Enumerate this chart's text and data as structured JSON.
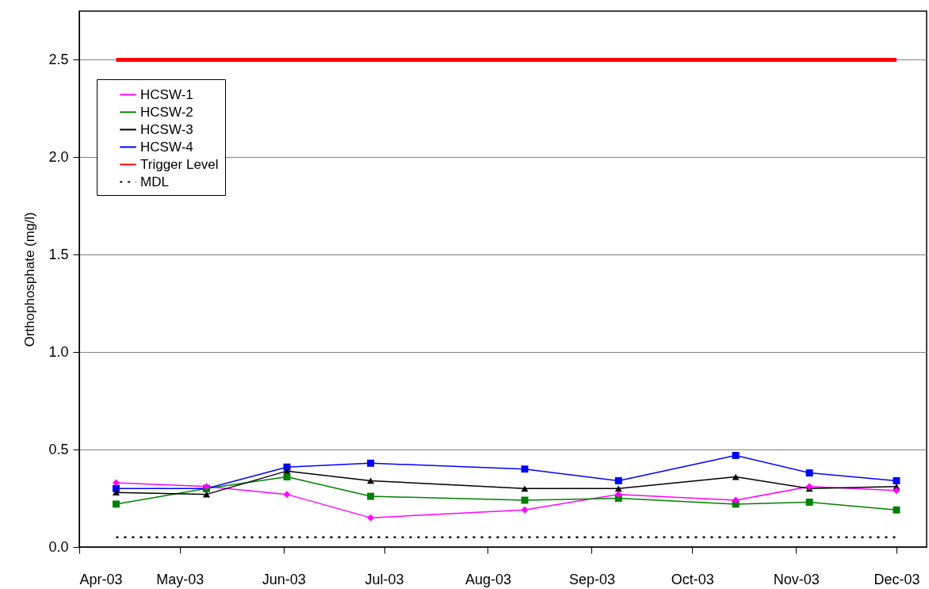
{
  "chart_data": {
    "type": "line",
    "ylabel": "Orthophosphate (mg/l)",
    "x": [
      "2003-04-12",
      "2003-05-09",
      "2003-06-02",
      "2003-06-27",
      "2003-08-12",
      "2003-09-09",
      "2003-10-14",
      "2003-11-05",
      "2003-12-01"
    ],
    "xlim": [
      "2003-04-01",
      "2003-12-10"
    ],
    "xticks": [
      {
        "value": "2003-04-01",
        "label": "Apr-03"
      },
      {
        "value": "2003-05-01",
        "label": "May-03"
      },
      {
        "value": "2003-06-01",
        "label": "Jun-03"
      },
      {
        "value": "2003-07-01",
        "label": "Jul-03"
      },
      {
        "value": "2003-08-01",
        "label": "Aug-03"
      },
      {
        "value": "2003-09-01",
        "label": "Sep-03"
      },
      {
        "value": "2003-10-01",
        "label": "Oct-03"
      },
      {
        "value": "2003-11-01",
        "label": "Nov-03"
      },
      {
        "value": "2003-12-01",
        "label": "Dec-03"
      }
    ],
    "ylim": [
      0,
      2.75
    ],
    "yticks": [
      {
        "value": 0,
        "label": "0.0"
      },
      {
        "value": 0.5,
        "label": "0.5"
      },
      {
        "value": 1,
        "label": "1.0"
      },
      {
        "value": 1.5,
        "label": "1.5"
      },
      {
        "value": 2,
        "label": "2.0"
      },
      {
        "value": 2.5,
        "label": "2.5"
      }
    ],
    "grid": "y",
    "legend": "top left",
    "series": [
      {
        "name": "HCSW-1",
        "color": "#ff00ff",
        "marker": "diamond",
        "line_style": "solid",
        "values": [
          0.33,
          0.31,
          0.27,
          0.15,
          0.19,
          0.27,
          0.24,
          0.31,
          0.29
        ]
      },
      {
        "name": "HCSW-2",
        "color": "#008000",
        "marker": "square",
        "line_style": "solid",
        "values": [
          0.22,
          0.3,
          0.36,
          0.26,
          0.24,
          0.25,
          0.22,
          0.23,
          0.19
        ]
      },
      {
        "name": "HCSW-3",
        "color": "#000000",
        "marker": "triangle",
        "line_style": "solid",
        "values": [
          0.28,
          0.27,
          0.39,
          0.34,
          0.3,
          0.3,
          0.36,
          0.3,
          0.31
        ]
      },
      {
        "name": "HCSW-4",
        "color": "#0000ff",
        "marker": "square",
        "line_style": "solid",
        "values": [
          0.3,
          0.3,
          0.41,
          0.43,
          0.4,
          0.34,
          0.47,
          0.38,
          0.34
        ]
      },
      {
        "name": "Trigger Level",
        "color": "#ff0000",
        "marker": "none",
        "line_style": "solid",
        "values": [
          2.5,
          2.5,
          2.5,
          2.5,
          2.5,
          2.5,
          2.5,
          2.5,
          2.5
        ]
      },
      {
        "name": "MDL",
        "color": "#000000",
        "marker": "none",
        "line_style": "dotted",
        "values": [
          0.05,
          0.05,
          0.05,
          0.05,
          0.05,
          0.05,
          0.05,
          0.05,
          0.05
        ]
      }
    ]
  }
}
